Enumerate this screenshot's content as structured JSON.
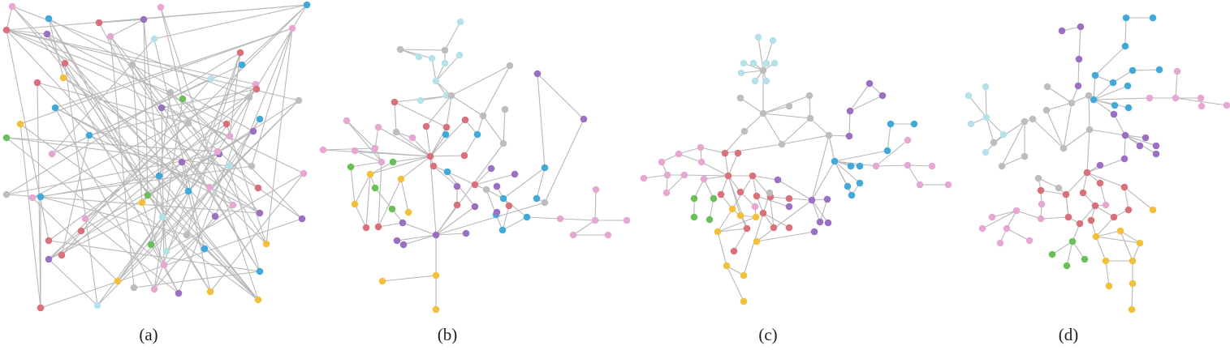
{
  "figure": {
    "panels": [
      {
        "id": "a",
        "label": "(a)",
        "layout": "random"
      },
      {
        "id": "b",
        "label": "(b)",
        "layout": "force-directed"
      },
      {
        "id": "c",
        "label": "(c)",
        "layout": "force-directed"
      },
      {
        "id": "d",
        "label": "(d)",
        "layout": "force-directed"
      }
    ],
    "edge_color": "#b8b8b8",
    "node_colors": {
      "red": "#d9707a",
      "blue": "#41a9d8",
      "purple": "#9b6fc1",
      "pink": "#e7a7d3",
      "yellow": "#f2c03a",
      "green": "#6bbf59",
      "grey": "#bdbdbd",
      "lightblue": "#b6e1ea"
    }
  }
}
